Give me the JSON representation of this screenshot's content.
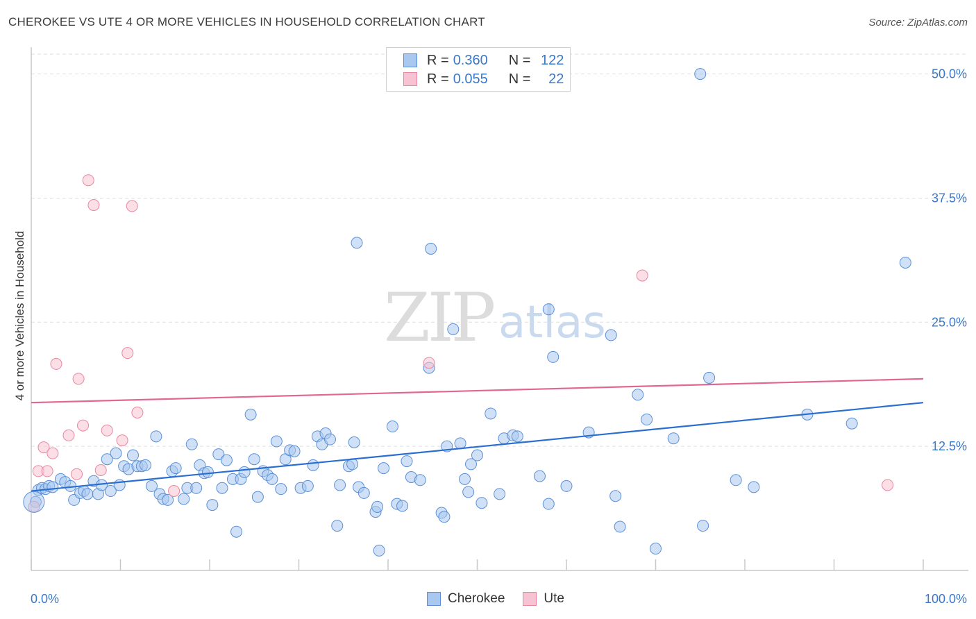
{
  "header": {
    "title": "CHEROKEE VS UTE 4 OR MORE VEHICLES IN HOUSEHOLD CORRELATION CHART",
    "source": "Source: ZipAtlas.com"
  },
  "watermark": {
    "zip": "ZIP",
    "atlas": "atlas"
  },
  "legend": {
    "rows": [
      {
        "r_label": "R =",
        "r_value": "0.360",
        "n_label": "N =",
        "n_value": "122"
      },
      {
        "r_label": "R =",
        "r_value": "0.055",
        "n_label": "N =",
        "n_value": "22"
      }
    ]
  },
  "bottom_legend": {
    "cherokee": "Cherokee",
    "ute": "Ute"
  },
  "colors": {
    "cherokee_fill": "#a9c8f0",
    "cherokee_stroke": "#5a8fd6",
    "cherokee_line": "#2a6fd0",
    "ute_fill": "#f7c3d2",
    "ute_stroke": "#e8879f",
    "ute_line": "#e06890",
    "tick_label": "#3a78c9",
    "grid": "#dddddd"
  },
  "chart_data": {
    "type": "scatter",
    "title": "CHEROKEE VS UTE 4 OR MORE VEHICLES IN HOUSEHOLD CORRELATION CHART",
    "xlabel": "",
    "ylabel": "4 or more Vehicles in Household",
    "xlim": [
      0,
      100
    ],
    "ylim": [
      0,
      52
    ],
    "x_tick_labels": [
      "0.0%",
      "100.0%"
    ],
    "y_ticks": [
      12.5,
      25.0,
      37.5,
      50.0
    ],
    "y_tick_labels": [
      "12.5%",
      "25.0%",
      "37.5%",
      "50.0%"
    ],
    "grid": "horizontal dashed",
    "series": [
      {
        "name": "Cherokee",
        "R": 0.36,
        "N": 122,
        "trend": {
          "x": [
            0,
            100
          ],
          "y": [
            8.0,
            16.9
          ]
        },
        "points": [
          [
            0.5,
            6.9
          ],
          [
            0.8,
            8.1
          ],
          [
            1.2,
            8.3
          ],
          [
            1.6,
            8.2
          ],
          [
            2.0,
            8.5
          ],
          [
            2.4,
            8.4
          ],
          [
            3.3,
            9.2
          ],
          [
            3.8,
            8.9
          ],
          [
            4.4,
            8.5
          ],
          [
            4.8,
            7.1
          ],
          [
            5.5,
            7.8
          ],
          [
            5.9,
            8.0
          ],
          [
            6.3,
            7.7
          ],
          [
            7.0,
            9.0
          ],
          [
            7.5,
            7.7
          ],
          [
            7.9,
            8.6
          ],
          [
            8.5,
            11.2
          ],
          [
            8.9,
            8.0
          ],
          [
            9.5,
            11.8
          ],
          [
            9.9,
            8.6
          ],
          [
            10.4,
            10.5
          ],
          [
            10.9,
            10.2
          ],
          [
            11.4,
            11.6
          ],
          [
            11.9,
            10.5
          ],
          [
            12.4,
            10.5
          ],
          [
            12.8,
            10.6
          ],
          [
            13.5,
            8.5
          ],
          [
            14.0,
            13.5
          ],
          [
            14.4,
            7.7
          ],
          [
            14.8,
            7.2
          ],
          [
            15.3,
            7.1
          ],
          [
            15.8,
            10.0
          ],
          [
            16.2,
            10.3
          ],
          [
            17.1,
            7.2
          ],
          [
            17.5,
            8.3
          ],
          [
            18.0,
            12.7
          ],
          [
            18.5,
            8.3
          ],
          [
            18.9,
            10.6
          ],
          [
            19.4,
            9.8
          ],
          [
            19.8,
            9.9
          ],
          [
            20.3,
            6.6
          ],
          [
            21.0,
            11.7
          ],
          [
            21.4,
            8.3
          ],
          [
            21.9,
            11.1
          ],
          [
            22.6,
            9.2
          ],
          [
            23.0,
            3.9
          ],
          [
            23.5,
            9.2
          ],
          [
            23.9,
            9.9
          ],
          [
            24.6,
            15.7
          ],
          [
            25.0,
            11.2
          ],
          [
            25.4,
            7.4
          ],
          [
            26.0,
            10.0
          ],
          [
            26.5,
            9.6
          ],
          [
            27.0,
            9.2
          ],
          [
            27.5,
            13.0
          ],
          [
            28.0,
            8.2
          ],
          [
            28.5,
            11.2
          ],
          [
            29.0,
            12.1
          ],
          [
            29.5,
            12.0
          ],
          [
            30.2,
            8.3
          ],
          [
            31.0,
            8.5
          ],
          [
            31.6,
            10.6
          ],
          [
            32.1,
            13.5
          ],
          [
            32.6,
            12.7
          ],
          [
            33.0,
            13.8
          ],
          [
            33.5,
            13.2
          ],
          [
            34.3,
            4.5
          ],
          [
            34.6,
            8.6
          ],
          [
            35.6,
            10.5
          ],
          [
            36.0,
            10.7
          ],
          [
            36.2,
            12.9
          ],
          [
            36.5,
            33.0
          ],
          [
            36.7,
            8.4
          ],
          [
            37.3,
            7.8
          ],
          [
            38.6,
            5.9
          ],
          [
            38.8,
            6.4
          ],
          [
            39.0,
            2.0
          ],
          [
            39.5,
            10.3
          ],
          [
            40.5,
            14.5
          ],
          [
            41.0,
            6.7
          ],
          [
            41.6,
            6.5
          ],
          [
            42.1,
            11.0
          ],
          [
            42.6,
            9.4
          ],
          [
            43.6,
            9.1
          ],
          [
            44.8,
            32.4
          ],
          [
            44.6,
            20.4
          ],
          [
            46.0,
            5.8
          ],
          [
            46.3,
            5.4
          ],
          [
            46.6,
            12.5
          ],
          [
            47.3,
            24.3
          ],
          [
            48.1,
            12.8
          ],
          [
            48.6,
            9.2
          ],
          [
            49.0,
            7.9
          ],
          [
            49.3,
            10.7
          ],
          [
            50.0,
            11.6
          ],
          [
            50.5,
            6.8
          ],
          [
            51.5,
            15.8
          ],
          [
            52.5,
            7.7
          ],
          [
            53.0,
            13.3
          ],
          [
            54.0,
            13.6
          ],
          [
            54.5,
            13.5
          ],
          [
            57.0,
            9.5
          ],
          [
            58.0,
            6.7
          ],
          [
            58.0,
            26.3
          ],
          [
            58.5,
            21.5
          ],
          [
            60.0,
            8.5
          ],
          [
            62.5,
            13.9
          ],
          [
            65.0,
            23.7
          ],
          [
            65.5,
            7.5
          ],
          [
            66.0,
            4.4
          ],
          [
            68.0,
            17.7
          ],
          [
            69.0,
            15.2
          ],
          [
            70.0,
            2.2
          ],
          [
            72.0,
            13.3
          ],
          [
            75.0,
            50.0
          ],
          [
            75.3,
            4.5
          ],
          [
            76.0,
            19.4
          ],
          [
            79.0,
            9.1
          ],
          [
            81.0,
            8.4
          ],
          [
            87.0,
            15.7
          ],
          [
            92.0,
            14.8
          ],
          [
            98.0,
            31.0
          ]
        ]
      },
      {
        "name": "Ute",
        "R": 0.055,
        "N": 22,
        "trend": {
          "x": [
            0,
            100
          ],
          "y": [
            16.9,
            19.3
          ]
        },
        "points": [
          [
            0.3,
            6.4
          ],
          [
            0.8,
            10.0
          ],
          [
            1.4,
            12.4
          ],
          [
            1.8,
            10.0
          ],
          [
            2.4,
            11.8
          ],
          [
            2.8,
            20.8
          ],
          [
            4.2,
            13.6
          ],
          [
            5.1,
            9.7
          ],
          [
            5.3,
            19.3
          ],
          [
            5.8,
            14.6
          ],
          [
            6.4,
            39.3
          ],
          [
            7.0,
            36.8
          ],
          [
            7.8,
            10.1
          ],
          [
            8.5,
            14.1
          ],
          [
            10.2,
            13.1
          ],
          [
            10.8,
            21.9
          ],
          [
            11.3,
            36.7
          ],
          [
            11.9,
            15.9
          ],
          [
            16.0,
            8.0
          ],
          [
            44.6,
            20.9
          ],
          [
            68.5,
            29.7
          ],
          [
            96.0,
            8.6
          ]
        ]
      }
    ]
  }
}
